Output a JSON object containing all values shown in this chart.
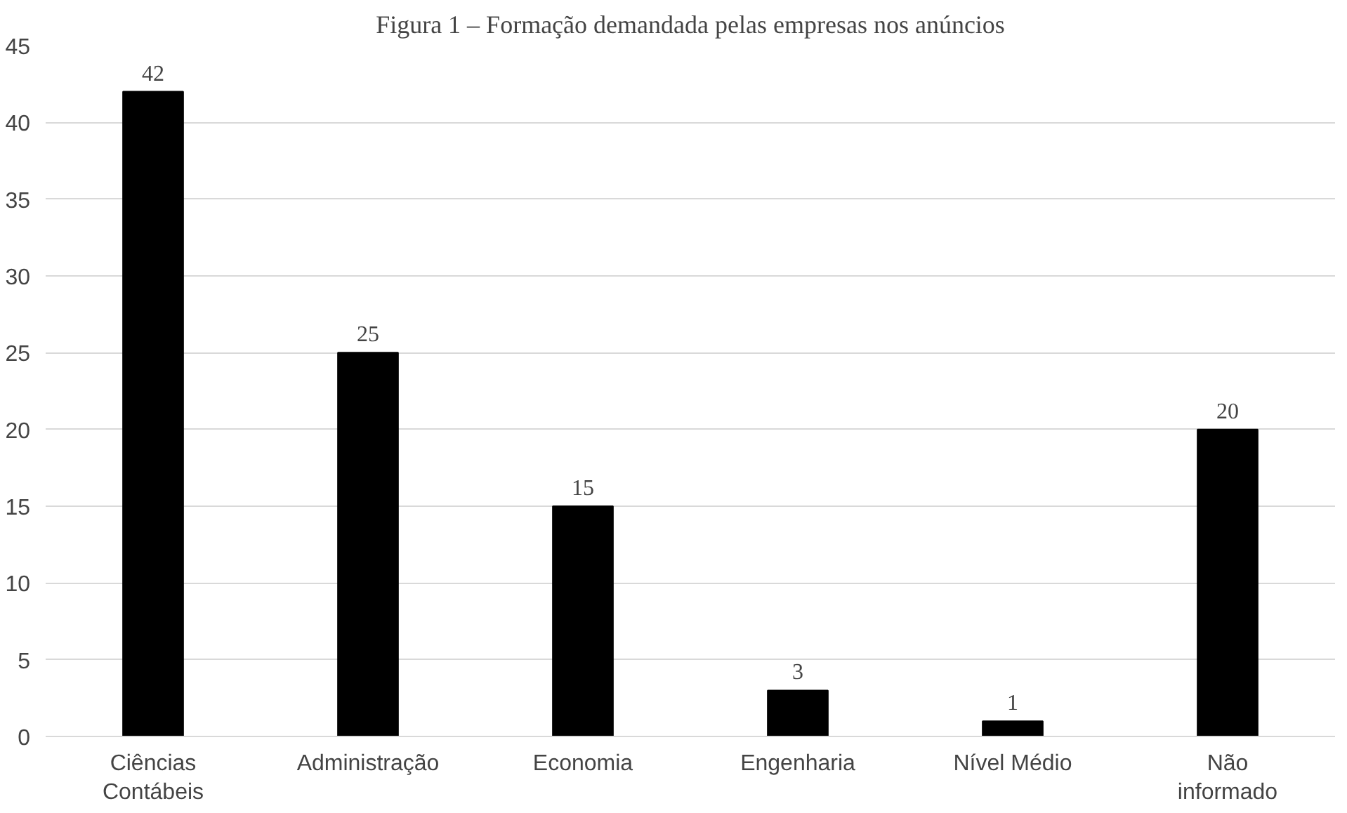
{
  "chart_data": {
    "type": "bar",
    "title": "Figura 1 – Formação demandada pelas empresas nos anúncios",
    "categories": [
      "Ciências\nContábeis",
      "Administração",
      "Economia",
      "Engenharia",
      "Nível Médio",
      "Não\ninformado"
    ],
    "values": [
      42,
      25,
      15,
      3,
      1,
      20
    ],
    "color": "#000000",
    "ylim": [
      0,
      45
    ],
    "yticks": [
      0,
      5,
      10,
      15,
      20,
      25,
      30,
      35,
      40,
      45
    ],
    "grid": "y",
    "data_labels": true
  }
}
